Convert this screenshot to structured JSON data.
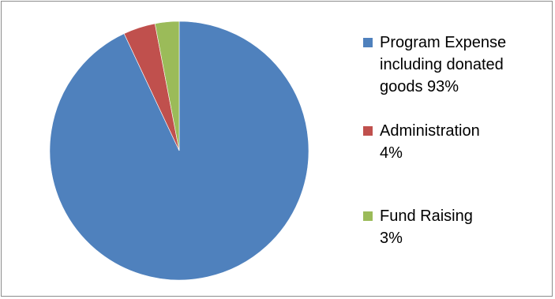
{
  "chart_data": {
    "type": "pie",
    "title": "",
    "legend_position": "right",
    "start_angle_deg": 0,
    "direction": "clockwise",
    "slices": [
      {
        "label": "Program Expense including donated goods",
        "value": 93,
        "legend_text": "Program Expense\nincluding donated\ngoods    93%",
        "color": "#4F81BD"
      },
      {
        "label": "Administration",
        "value": 4,
        "legend_text": "Administration\n4%",
        "color": "#C0504D"
      },
      {
        "label": "Fund Raising",
        "value": 3,
        "legend_text": "Fund Raising\n3%",
        "color": "#9BBB59"
      }
    ]
  }
}
